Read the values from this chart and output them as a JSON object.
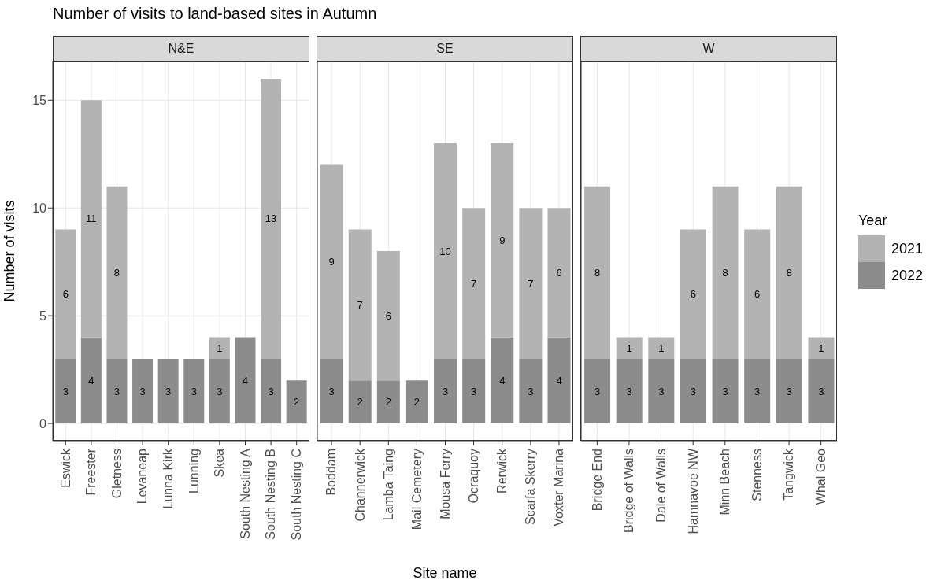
{
  "chart_data": [
    {
      "type": "bar",
      "title": "Number of visits to land-based sites in Autumn",
      "subtitle": "N&E",
      "ylabel": "Number of visits",
      "legend_title": "Year",
      "legend": "right",
      "categories": [
        "Eswick",
        "Freester",
        "Gletness",
        "Levaneap",
        "Lunna Kirk",
        "Lunning",
        "Skea",
        "South Nesting A",
        "South Nesting B",
        "South Nesting C"
      ],
      "stacked": true,
      "data_labels": true,
      "grid": true,
      "ylim": [
        -0.8,
        16.8
      ],
      "yticks": [
        0,
        5,
        10,
        15
      ],
      "series": [
        {
          "name": "2022",
          "color": "#8c8c8c",
          "values": [
            3,
            4,
            3,
            3,
            3,
            3,
            3,
            4,
            3,
            2
          ]
        },
        {
          "name": "2021",
          "color": "#b3b3b3",
          "values": [
            6,
            11,
            8,
            null,
            null,
            null,
            1,
            null,
            13,
            null
          ]
        }
      ]
    },
    {
      "type": "bar",
      "subtitle": "SE",
      "xlabel": "Site name",
      "categories": [
        "Boddam",
        "Channerwick",
        "Lamba Taing",
        "Mail Cemetery",
        "Mousa Ferry",
        "Ocraquoy",
        "Rerwick",
        "Scarfa Skerry",
        "Voxter Marina"
      ],
      "stacked": true,
      "data_labels": true,
      "grid": true,
      "tick_labels": "x",
      "ylim": [
        -0.8,
        16.8
      ],
      "yticks": [
        0,
        5,
        10,
        15
      ],
      "series": [
        {
          "name": "2022",
          "color": "#8c8c8c",
          "values": [
            3,
            2,
            2,
            2,
            3,
            3,
            4,
            3,
            4
          ]
        },
        {
          "name": "2021",
          "color": "#b3b3b3",
          "values": [
            9,
            7,
            6,
            null,
            10,
            7,
            9,
            7,
            6
          ]
        }
      ]
    },
    {
      "type": "bar",
      "subtitle": "W",
      "categories": [
        "Bridge End",
        "Bridge of Walls",
        "Dale of Walls",
        "Hamnavoe NW",
        "Minn Beach",
        "Stenness",
        "Tangwick",
        "Whal Geo"
      ],
      "stacked": true,
      "data_labels": true,
      "grid": true,
      "tick_labels": "x",
      "ylim": [
        -0.8,
        16.8
      ],
      "yticks": [
        0,
        5,
        10,
        15
      ],
      "series": [
        {
          "name": "2022",
          "color": "#8c8c8c",
          "values": [
            3,
            3,
            3,
            3,
            3,
            3,
            3,
            3
          ]
        },
        {
          "name": "2021",
          "color": "#b3b3b3",
          "values": [
            8,
            1,
            1,
            6,
            8,
            6,
            8,
            1
          ]
        }
      ]
    }
  ]
}
